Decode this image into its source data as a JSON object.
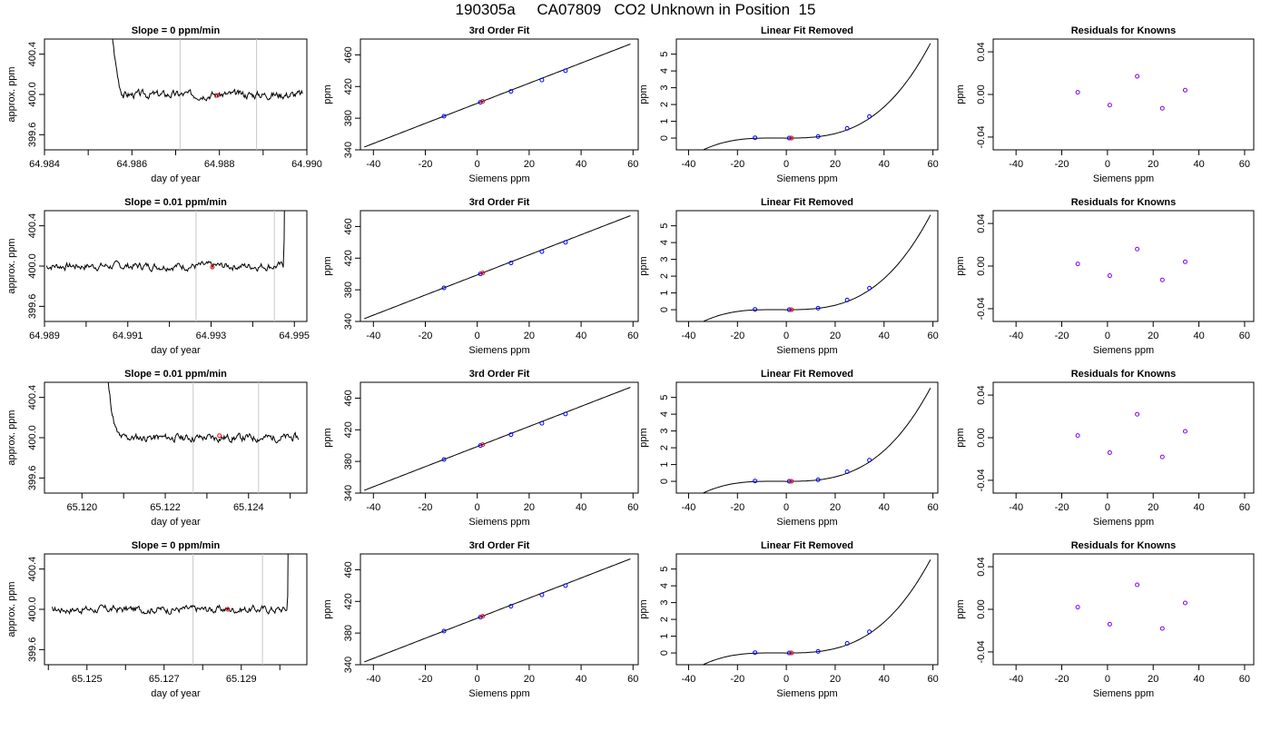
{
  "page": {
    "title": "190305a     CA07809   CO2 Unknown in Position  15"
  },
  "colors": {
    "axis": "#000000",
    "curve": "#000000",
    "marker_line": "#c8c8c8",
    "known_point": "#0000ff",
    "unknown_point": "#ff0000",
    "residual_point": "#8000ff"
  },
  "chart_data": [
    {
      "type": "line",
      "panel": "trace",
      "row": 0,
      "title": "Slope =  0  ppm/min",
      "xlabel": "day of year",
      "ylabel": "approx. ppm",
      "xlim": [
        64.984,
        64.99
      ],
      "ylim": [
        399.45,
        400.55
      ],
      "xticks": [
        64.984,
        64.986,
        64.988,
        64.99
      ],
      "xtick_labels": [
        "64.984",
        "64.986",
        "64.988",
        "64.990"
      ],
      "minor_xticks": [
        64.985,
        64.987,
        64.989
      ],
      "yticks": [
        399.6,
        400.0,
        400.4
      ],
      "ytick_labels": [
        "399.6",
        "400.0",
        "400.4"
      ],
      "markers": [
        64.9871,
        64.98885
      ],
      "unknown_point": {
        "x": 64.98795,
        "y": 399.99
      },
      "trace_start": 64.9851,
      "trace_end": 64.9899,
      "flat_from": 64.9858,
      "rise_from": 0,
      "wiggle_seed": 3,
      "grid": false
    },
    {
      "type": "line",
      "panel": "fit",
      "row": 0,
      "title": "3rd Order Fit",
      "xlabel": "Siemens ppm",
      "ylabel": "ppm",
      "xlim": [
        -45,
        62
      ],
      "ylim": [
        340,
        480
      ],
      "xticks": [
        -40,
        -20,
        0,
        20,
        40,
        60
      ],
      "xtick_labels": [
        "-40",
        "-20",
        "0",
        "20",
        "40",
        "60"
      ],
      "yticks": [
        340,
        380,
        420,
        460
      ],
      "ytick_labels": [
        "340",
        "380",
        "420",
        "460"
      ],
      "curve_intercept": 398.8,
      "curve_slope": 1.27,
      "curve_range": [
        -43.5,
        59
      ],
      "knowns": [
        [
          -12.8,
          382.5
        ],
        [
          1.2,
          400.1
        ],
        [
          13,
          413.9
        ],
        [
          24.9,
          428.2
        ],
        [
          34,
          440
        ]
      ],
      "unknown": [
        [
          2.1,
          401.2
        ]
      ],
      "grid": false
    },
    {
      "type": "line",
      "panel": "linear-removed",
      "row": 0,
      "title": "Linear Fit Removed",
      "xlabel": "Siemens ppm",
      "ylabel": "ppm",
      "xlim": [
        -45,
        62
      ],
      "ylim": [
        -0.7,
        5.9
      ],
      "xticks": [
        -40,
        -20,
        0,
        20,
        40,
        60
      ],
      "xtick_labels": [
        "-40",
        "-20",
        "0",
        "20",
        "40",
        "60"
      ],
      "yticks": [
        0,
        1,
        2,
        3,
        4,
        5
      ],
      "ytick_labels": [
        "0",
        "1",
        "2",
        "3",
        "4",
        "5"
      ],
      "cubic_coefficients": [
        2.415e-05,
        0.0002025,
        -0.0003
      ],
      "curve_range": [
        -43.5,
        59
      ],
      "knowns": [
        [
          -12.8,
          0.02
        ],
        [
          1.2,
          0.0
        ],
        [
          13,
          0.09
        ],
        [
          24.9,
          0.58
        ],
        [
          34,
          1.28
        ]
      ],
      "unknown": [
        [
          2.1,
          0.0
        ]
      ],
      "grid": false
    },
    {
      "type": "scatter",
      "panel": "residuals",
      "row": 0,
      "title": "Residuals for Knowns",
      "xlabel": "Siemens ppm",
      "ylabel": "ppm",
      "xlim": [
        -50,
        64
      ],
      "ylim": [
        -0.052,
        0.052
      ],
      "xticks": [
        -40,
        -20,
        0,
        20,
        40,
        60
      ],
      "xtick_labels": [
        "-40",
        "-20",
        "0",
        "20",
        "40",
        "60"
      ],
      "yticks": [
        -0.04,
        0.0,
        0.04
      ],
      "ytick_labels": [
        "-0.04",
        "0.00",
        "0.04"
      ],
      "points": [
        [
          -13,
          0.002
        ],
        [
          1,
          -0.01
        ],
        [
          13,
          0.017
        ],
        [
          24,
          -0.013
        ],
        [
          34,
          0.004
        ]
      ],
      "grid": false
    },
    {
      "type": "line",
      "panel": "trace",
      "row": 1,
      "title": "Slope =  0.01  ppm/min",
      "xlabel": "day of year",
      "ylabel": "approx. ppm",
      "xlim": [
        64.989,
        64.9953
      ],
      "ylim": [
        399.45,
        400.55
      ],
      "xticks": [
        64.989,
        64.991,
        64.993,
        64.995
      ],
      "xtick_labels": [
        "64.989",
        "64.991",
        "64.993",
        "64.995"
      ],
      "minor_xticks": [
        64.99,
        64.992,
        64.994
      ],
      "yticks": [
        399.6,
        400.0,
        400.4
      ],
      "ytick_labels": [
        "399.6",
        "400.0",
        "400.4"
      ],
      "markers": [
        64.99264,
        64.99452
      ],
      "unknown_point": {
        "x": 64.99303,
        "y": 399.99
      },
      "trace_start": 64.98905,
      "trace_end": 64.9948,
      "flat_from": 0,
      "rise_from": 64.99475,
      "wiggle_seed": 7,
      "grid": false
    },
    {
      "type": "line",
      "panel": "fit",
      "row": 1,
      "title": "3rd Order Fit",
      "xlabel": "Siemens ppm",
      "ylabel": "ppm",
      "xlim": [
        -45,
        62
      ],
      "ylim": [
        340,
        480
      ],
      "xticks": [
        -40,
        -20,
        0,
        20,
        40,
        60
      ],
      "xtick_labels": [
        "-40",
        "-20",
        "0",
        "20",
        "40",
        "60"
      ],
      "yticks": [
        340,
        380,
        420,
        460
      ],
      "ytick_labels": [
        "340",
        "380",
        "420",
        "460"
      ],
      "curve_intercept": 398.8,
      "curve_slope": 1.27,
      "curve_range": [
        -43.5,
        59
      ],
      "knowns": [
        [
          -12.8,
          382.5
        ],
        [
          1.2,
          400.1
        ],
        [
          13,
          413.9
        ],
        [
          24.9,
          428.2
        ],
        [
          34,
          440
        ]
      ],
      "unknown": [
        [
          2.1,
          401.2
        ]
      ],
      "grid": false
    },
    {
      "type": "line",
      "panel": "linear-removed",
      "row": 1,
      "title": "Linear Fit Removed",
      "xlabel": "Siemens ppm",
      "ylabel": "ppm",
      "xlim": [
        -45,
        62
      ],
      "ylim": [
        -0.7,
        5.9
      ],
      "xticks": [
        -40,
        -20,
        0,
        20,
        40,
        60
      ],
      "xtick_labels": [
        "-40",
        "-20",
        "0",
        "20",
        "40",
        "60"
      ],
      "yticks": [
        0,
        1,
        2,
        3,
        4,
        5
      ],
      "ytick_labels": [
        "0",
        "1",
        "2",
        "3",
        "4",
        "5"
      ],
      "cubic_coefficients": [
        2.415e-05,
        0.0002025,
        -0.0003
      ],
      "curve_range": [
        -43.5,
        59
      ],
      "knowns": [
        [
          -12.8,
          0.02
        ],
        [
          1.2,
          0.0
        ],
        [
          13,
          0.09
        ],
        [
          24.9,
          0.58
        ],
        [
          34,
          1.28
        ]
      ],
      "unknown": [
        [
          2.1,
          0.0
        ]
      ],
      "grid": false
    },
    {
      "type": "scatter",
      "panel": "residuals",
      "row": 1,
      "title": "Residuals for Knowns",
      "xlabel": "Siemens ppm",
      "ylabel": "ppm",
      "xlim": [
        -50,
        64
      ],
      "ylim": [
        -0.052,
        0.052
      ],
      "xticks": [
        -40,
        -20,
        0,
        20,
        40,
        60
      ],
      "xtick_labels": [
        "-40",
        "-20",
        "0",
        "20",
        "40",
        "60"
      ],
      "yticks": [
        -0.04,
        0.0,
        0.04
      ],
      "ytick_labels": [
        "-0.04",
        "0.00",
        "0.04"
      ],
      "points": [
        [
          -13,
          0.002
        ],
        [
          1,
          -0.009
        ],
        [
          13,
          0.016
        ],
        [
          24,
          -0.013
        ],
        [
          34,
          0.004
        ]
      ],
      "grid": false
    },
    {
      "type": "line",
      "panel": "trace",
      "row": 2,
      "title": "Slope =  0.01  ppm/min",
      "xlabel": "day of year",
      "ylabel": "approx. ppm",
      "xlim": [
        65.1191,
        65.1254
      ],
      "ylim": [
        399.45,
        400.55
      ],
      "xticks": [
        65.12,
        65.122,
        65.124
      ],
      "xtick_labels": [
        "65.120",
        "65.122",
        "65.124"
      ],
      "minor_xticks": [
        65.121,
        65.123,
        65.125
      ],
      "yticks": [
        399.6,
        400.0,
        400.4
      ],
      "ytick_labels": [
        "399.6",
        "400.0",
        "400.4"
      ],
      "markers": [
        65.12267,
        65.12424
      ],
      "unknown_point": {
        "x": 65.1233,
        "y": 400.02
      },
      "trace_start": 65.1201,
      "trace_end": 65.1252,
      "flat_from": 65.1209,
      "rise_from": 0,
      "wiggle_seed": 11,
      "grid": false
    },
    {
      "type": "line",
      "panel": "fit",
      "row": 2,
      "title": "3rd Order Fit",
      "xlabel": "Siemens ppm",
      "ylabel": "ppm",
      "xlim": [
        -45,
        62
      ],
      "ylim": [
        340,
        480
      ],
      "xticks": [
        -40,
        -20,
        0,
        20,
        40,
        60
      ],
      "xtick_labels": [
        "-40",
        "-20",
        "0",
        "20",
        "40",
        "60"
      ],
      "yticks": [
        340,
        380,
        420,
        460
      ],
      "ytick_labels": [
        "340",
        "380",
        "420",
        "460"
      ],
      "curve_intercept": 398.8,
      "curve_slope": 1.27,
      "curve_range": [
        -43.5,
        59
      ],
      "knowns": [
        [
          -12.8,
          382.5
        ],
        [
          1.2,
          400.1
        ],
        [
          13,
          413.9
        ],
        [
          24.9,
          428.2
        ],
        [
          34,
          440
        ]
      ],
      "unknown": [
        [
          2.1,
          401.2
        ]
      ],
      "grid": false
    },
    {
      "type": "line",
      "panel": "linear-removed",
      "row": 2,
      "title": "Linear Fit Removed",
      "xlabel": "Siemens ppm",
      "ylabel": "ppm",
      "xlim": [
        -45,
        62
      ],
      "ylim": [
        -0.7,
        5.9
      ],
      "xticks": [
        -40,
        -20,
        0,
        20,
        40,
        60
      ],
      "xtick_labels": [
        "-40",
        "-20",
        "0",
        "20",
        "40",
        "60"
      ],
      "yticks": [
        0,
        1,
        2,
        3,
        4,
        5
      ],
      "ytick_labels": [
        "0",
        "1",
        "2",
        "3",
        "4",
        "5"
      ],
      "cubic_coefficients": [
        2.38e-05,
        0.0002,
        -0.0003
      ],
      "curve_range": [
        -43.5,
        59
      ],
      "knowns": [
        [
          -12.8,
          0.02
        ],
        [
          1.2,
          0.0
        ],
        [
          13,
          0.09
        ],
        [
          24.9,
          0.57
        ],
        [
          34,
          1.26
        ]
      ],
      "unknown": [
        [
          2.1,
          0.0
        ]
      ],
      "grid": false
    },
    {
      "type": "scatter",
      "panel": "residuals",
      "row": 2,
      "title": "Residuals for Knowns",
      "xlabel": "Siemens ppm",
      "ylabel": "ppm",
      "xlim": [
        -50,
        64
      ],
      "ylim": [
        -0.052,
        0.052
      ],
      "xticks": [
        -40,
        -20,
        0,
        20,
        40,
        60
      ],
      "xtick_labels": [
        "-40",
        "-20",
        "0",
        "20",
        "40",
        "60"
      ],
      "yticks": [
        -0.04,
        0.0,
        0.04
      ],
      "ytick_labels": [
        "-0.04",
        "0.00",
        "0.04"
      ],
      "points": [
        [
          -13,
          0.002
        ],
        [
          1,
          -0.014
        ],
        [
          13,
          0.022
        ],
        [
          24,
          -0.018
        ],
        [
          34,
          0.006
        ]
      ],
      "grid": false
    },
    {
      "type": "line",
      "panel": "trace",
      "row": 3,
      "title": "Slope =  0  ppm/min",
      "xlabel": "day of year",
      "ylabel": "approx. ppm",
      "xlim": [
        65.1239,
        65.1307
      ],
      "ylim": [
        399.45,
        400.55
      ],
      "xticks": [
        65.125,
        65.127,
        65.129
      ],
      "xtick_labels": [
        "65.125",
        "65.127",
        "65.129"
      ],
      "minor_xticks": [
        65.124,
        65.126,
        65.128,
        65.13
      ],
      "yticks": [
        399.6,
        400.0,
        400.4
      ],
      "ytick_labels": [
        "399.6",
        "400.0",
        "400.4"
      ],
      "markers": [
        65.12775,
        65.12955
      ],
      "unknown_point": {
        "x": 65.12865,
        "y": 400.0
      },
      "trace_start": 65.1241,
      "trace_end": 65.13025,
      "flat_from": 0,
      "rise_from": 65.1302,
      "wiggle_seed": 17,
      "grid": false
    },
    {
      "type": "line",
      "panel": "fit",
      "row": 3,
      "title": "3rd Order Fit",
      "xlabel": "Siemens ppm",
      "ylabel": "ppm",
      "xlim": [
        -45,
        62
      ],
      "ylim": [
        340,
        480
      ],
      "xticks": [
        -40,
        -20,
        0,
        20,
        40,
        60
      ],
      "xtick_labels": [
        "-40",
        "-20",
        "0",
        "20",
        "40",
        "60"
      ],
      "yticks": [
        340,
        380,
        420,
        460
      ],
      "ytick_labels": [
        "340",
        "380",
        "420",
        "460"
      ],
      "curve_intercept": 398.8,
      "curve_slope": 1.27,
      "curve_range": [
        -43.5,
        59
      ],
      "knowns": [
        [
          -12.8,
          382.5
        ],
        [
          1.2,
          400.1
        ],
        [
          13,
          413.9
        ],
        [
          24.9,
          428.2
        ],
        [
          34,
          440
        ]
      ],
      "unknown": [
        [
          2.1,
          401.2
        ]
      ],
      "grid": false
    },
    {
      "type": "line",
      "panel": "linear-removed",
      "row": 3,
      "title": "Linear Fit Removed",
      "xlabel": "Siemens ppm",
      "ylabel": "ppm",
      "xlim": [
        -45,
        62
      ],
      "ylim": [
        -0.7,
        5.9
      ],
      "xticks": [
        -40,
        -20,
        0,
        20,
        40,
        60
      ],
      "xtick_labels": [
        "-40",
        "-20",
        "0",
        "20",
        "40",
        "60"
      ],
      "yticks": [
        0,
        1,
        2,
        3,
        4,
        5
      ],
      "ytick_labels": [
        "0",
        "1",
        "2",
        "3",
        "4",
        "5"
      ],
      "cubic_coefficients": [
        2.38e-05,
        0.0002,
        -0.0003
      ],
      "curve_range": [
        -43.5,
        59
      ],
      "knowns": [
        [
          -12.8,
          0.02
        ],
        [
          1.2,
          0.0
        ],
        [
          13,
          0.09
        ],
        [
          24.9,
          0.57
        ],
        [
          34,
          1.26
        ]
      ],
      "unknown": [
        [
          2.1,
          0.0
        ]
      ],
      "grid": false
    },
    {
      "type": "scatter",
      "panel": "residuals",
      "row": 3,
      "title": "Residuals for Knowns",
      "xlabel": "Siemens ppm",
      "ylabel": "ppm",
      "xlim": [
        -50,
        64
      ],
      "ylim": [
        -0.052,
        0.052
      ],
      "xticks": [
        -40,
        -20,
        0,
        20,
        40,
        60
      ],
      "xtick_labels": [
        "-40",
        "-20",
        "0",
        "20",
        "40",
        "60"
      ],
      "yticks": [
        -0.04,
        0.0,
        0.04
      ],
      "ytick_labels": [
        "-0.04",
        "0.00",
        "0.04"
      ],
      "points": [
        [
          -13,
          0.002
        ],
        [
          1,
          -0.014
        ],
        [
          13,
          0.023
        ],
        [
          24,
          -0.018
        ],
        [
          34,
          0.006
        ]
      ],
      "grid": false
    }
  ]
}
